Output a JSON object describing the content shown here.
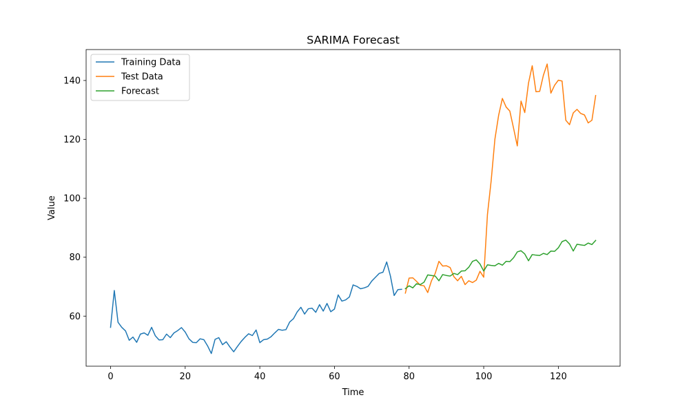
{
  "chart_data": {
    "type": "line",
    "title": "SARIMA Forecast",
    "xlabel": "Time",
    "ylabel": "Value",
    "xlim": [
      -6.55,
      136.55
    ],
    "ylim": [
      43,
      150.5
    ],
    "x_ticks": [
      0,
      20,
      40,
      60,
      80,
      100,
      120
    ],
    "y_ticks": [
      60,
      80,
      100,
      120,
      140
    ],
    "grid": false,
    "legend_position": "upper-left",
    "series": [
      {
        "name": "Training Data",
        "color": "#1f77b4",
        "x_start": 0,
        "values": [
          56.2,
          68.7,
          57.9,
          56.2,
          55.0,
          51.8,
          52.9,
          51.1,
          53.9,
          54.3,
          53.5,
          56.2,
          53.3,
          51.9,
          52.0,
          53.9,
          52.7,
          54.3,
          55.1,
          56.1,
          54.6,
          52.3,
          51.1,
          51.0,
          52.3,
          52.0,
          49.9,
          47.3,
          52.1,
          52.7,
          50.3,
          51.3,
          49.5,
          47.9,
          49.7,
          51.4,
          52.8,
          54.0,
          53.4,
          55.3,
          51.0,
          52.0,
          52.2,
          53.0,
          54.3,
          55.5,
          55.2,
          55.4,
          58.0,
          59.1,
          61.4,
          63.0,
          60.7,
          62.5,
          62.7,
          61.3,
          63.9,
          61.7,
          64.3,
          61.5,
          62.4,
          67.2,
          65.1,
          65.5,
          66.5,
          70.6,
          70.1,
          69.3,
          69.6,
          70.1,
          71.9,
          73.2,
          74.5,
          74.9,
          78.4,
          73.6,
          67.0,
          69.0,
          69.1
        ]
      },
      {
        "name": "Test Data",
        "color": "#ff7f0e",
        "x_start": 79,
        "values": [
          67.8,
          72.9,
          73.0,
          71.8,
          70.5,
          70.3,
          68.0,
          72.0,
          74.5,
          78.6,
          77.0,
          77.1,
          76.5,
          73.4,
          72.0,
          73.5,
          70.7,
          72.0,
          71.4,
          72.2,
          75.2,
          73.2,
          94.5,
          106.0,
          120.1,
          128.2,
          133.9,
          131.0,
          129.6,
          123.8,
          117.8,
          133.0,
          129.1,
          139.1,
          145.0,
          136.2,
          136.3,
          141.8,
          145.6,
          135.7,
          138.4,
          140.1,
          139.8,
          126.5,
          125.0,
          129.0,
          130.2,
          128.8,
          128.3,
          125.6,
          126.5,
          134.9
        ]
      },
      {
        "name": "Forecast",
        "color": "#2ca02c",
        "x_start": 79,
        "values": [
          69.3,
          70.3,
          69.6,
          71.0,
          70.7,
          71.5,
          74.0,
          73.8,
          73.6,
          72.0,
          74.1,
          73.8,
          73.6,
          74.5,
          74.1,
          75.3,
          75.4,
          76.6,
          78.6,
          79.1,
          77.7,
          75.3,
          77.4,
          77.2,
          77.1,
          77.9,
          77.3,
          78.6,
          78.5,
          79.8,
          81.8,
          82.2,
          81.1,
          78.8,
          80.9,
          80.7,
          80.6,
          81.3,
          80.9,
          82.1,
          82.0,
          83.2,
          85.3,
          85.8,
          84.5,
          82.1,
          84.4,
          84.2,
          84.0,
          84.8,
          84.3,
          85.7
        ]
      }
    ]
  }
}
